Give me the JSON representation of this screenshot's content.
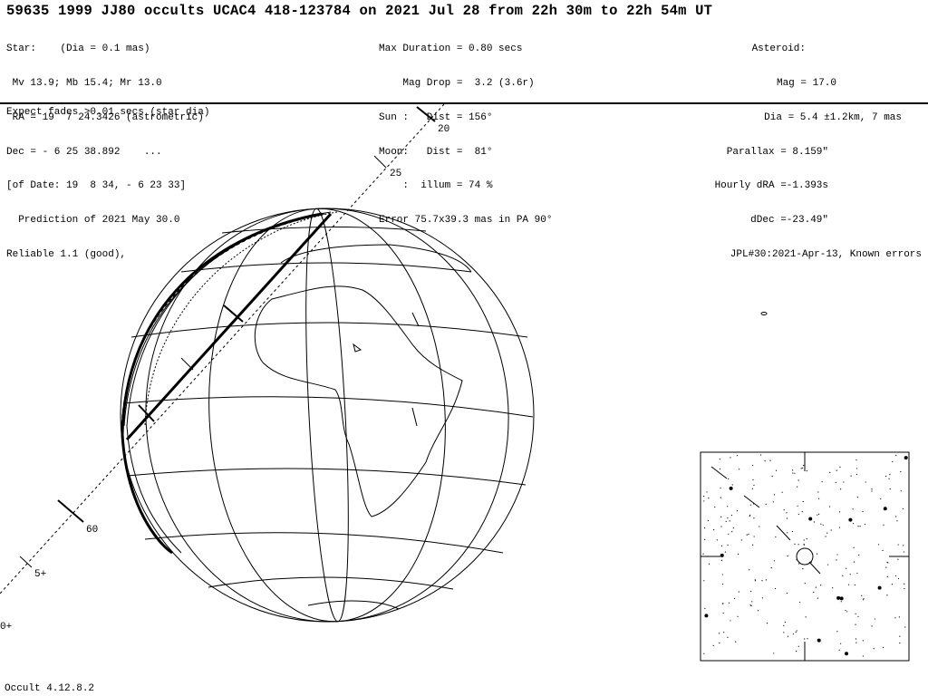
{
  "title": "59635 1999 JJ80 occults UCAC4 418-123784 on 2021 Jul 28 from 22h 30m to 22h 54m UT",
  "star": [
    "Star:    (Dia = 0.1 mas)",
    " Mv 13.9; Mb 15.4; Mr 13.0",
    " RA = 19  7 24.3426 (astrometric)",
    "Dec = - 6 25 38.892    ...",
    "[of Date: 19  8 34, - 6 23 33]",
    "  Prediction of 2021 May 30.0",
    "Reliable 1.1 (good),"
  ],
  "event": [
    "Max Duration = 0.80 secs",
    "    Mag Drop =  3.2 (3.6r)",
    "Sun :   Dist = 156°",
    "Moon:   Dist =  81°",
    "    :  illum = 74 %",
    "Error 75.7x39.3 mas in PA 90°"
  ],
  "asteroid": [
    "Asteroid:",
    "  Mag = 17.0",
    "  Dia = 5.4 ±1.2km, 7 mas",
    "Parallax = 8.159\"",
    "Hourly dRA =-1.393s",
    "    dDec =-23.49\"",
    "JPL#30:2021-Apr-13, Known errors"
  ],
  "note": "Expect fades >0.01 secs (star dia)",
  "footer": "Occult 4.12.8.2",
  "track_labels": [
    "20",
    "25",
    "60",
    "5+",
    "0+"
  ]
}
